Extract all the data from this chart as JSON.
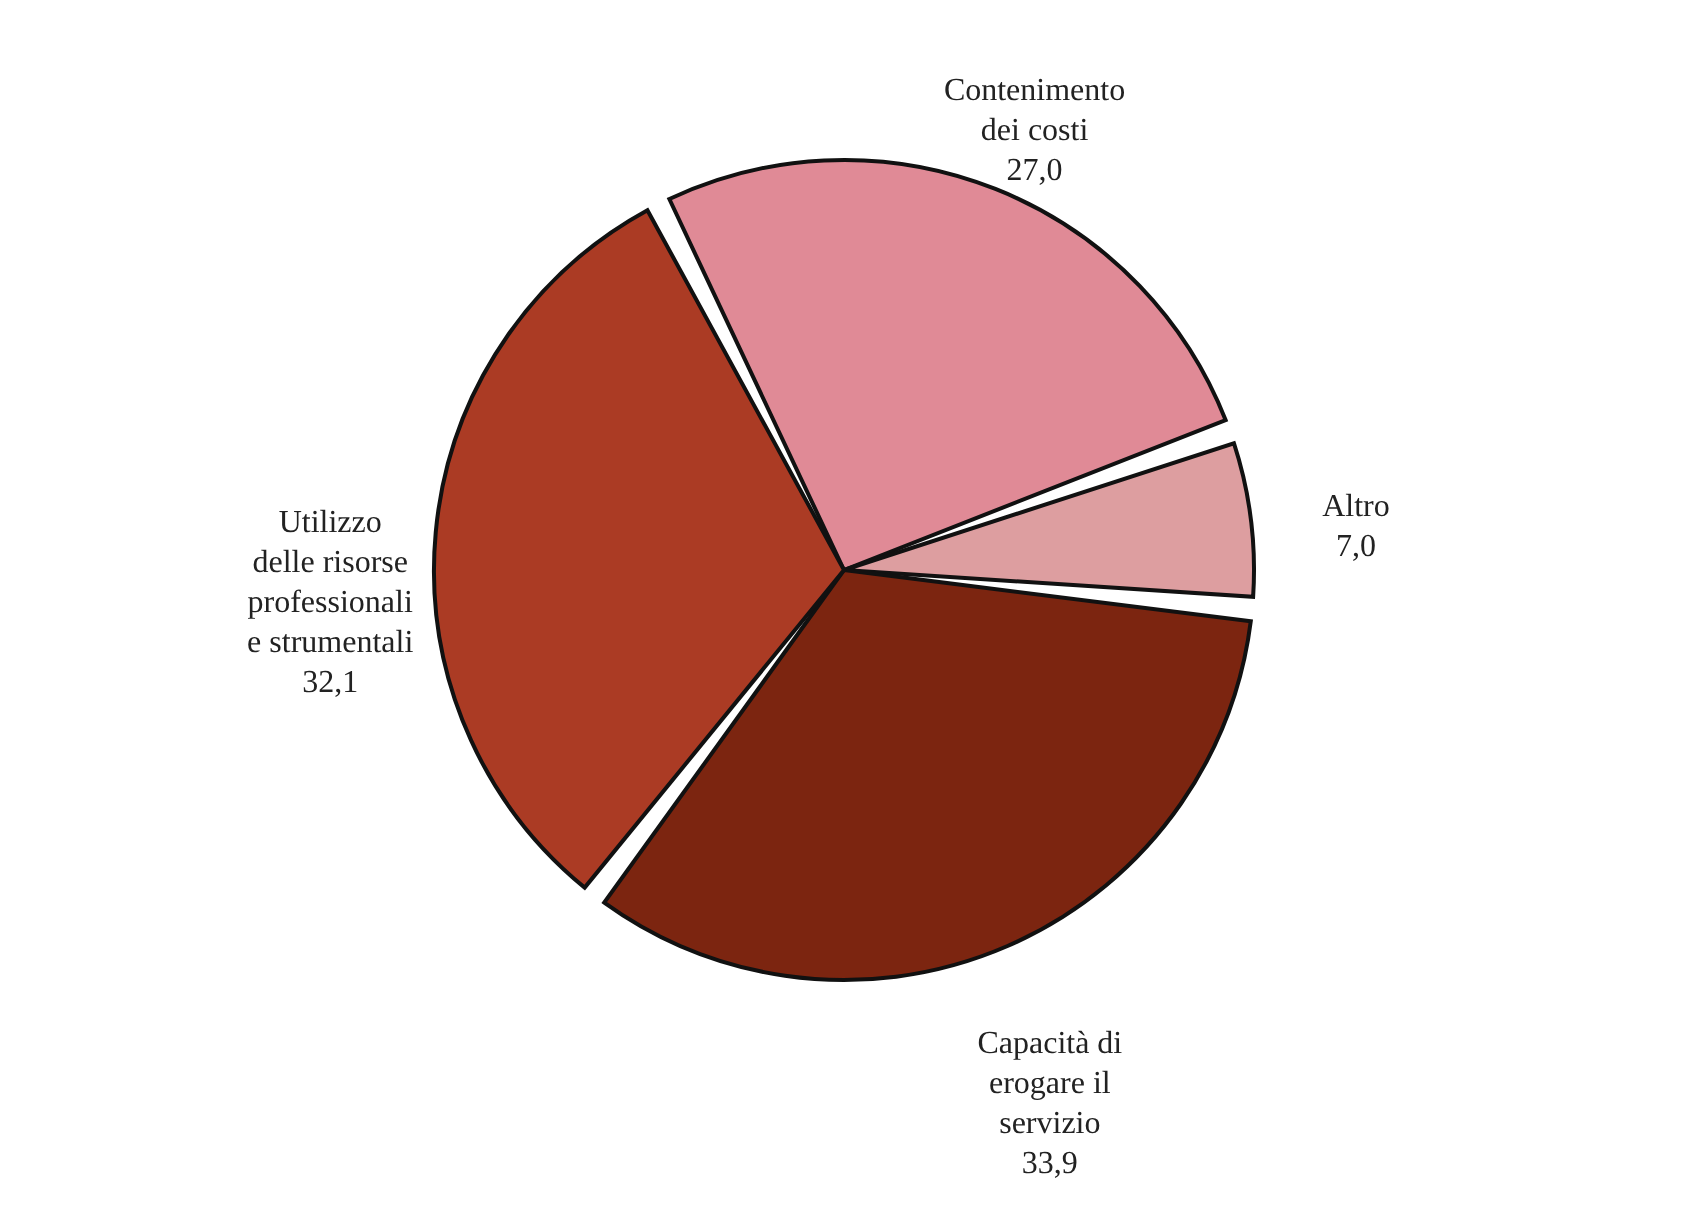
{
  "chart_data": {
    "type": "pie",
    "categories": [
      "Contenimento dei costi",
      "Altro",
      "Capacità di erogare il servizio",
      "Utilizzo delle risorse professionali e strumentali"
    ],
    "values": [
      27.0,
      7.0,
      33.9,
      32.1
    ],
    "colors": [
      "#e08a96",
      "#dd9ea0",
      "#7c2510",
      "#ab3b24"
    ],
    "value_labels": [
      "27,0",
      "7,0",
      "33,9",
      "32,1"
    ]
  }
}
